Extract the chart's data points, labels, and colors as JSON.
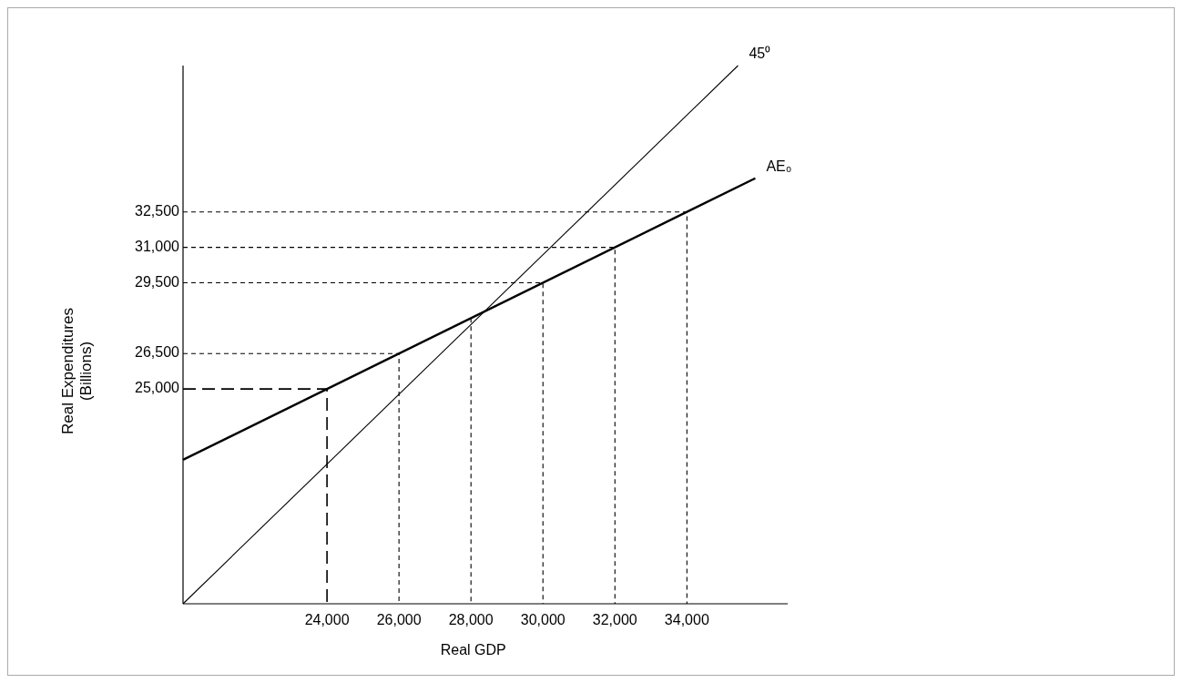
{
  "chart_data": {
    "type": "line",
    "xlabel": "Real GDP",
    "ylabel": "Real Expenditures (Billions)",
    "xlim": [
      20000,
      36800
    ],
    "ylim": [
      15900,
      38700
    ],
    "xticks": [
      {
        "value": 24000,
        "label": "24,000"
      },
      {
        "value": 26000,
        "label": "26,000"
      },
      {
        "value": 28000,
        "label": "28,000"
      },
      {
        "value": 30000,
        "label": "30,000"
      },
      {
        "value": 32000,
        "label": "32,000"
      },
      {
        "value": 34000,
        "label": "34,000"
      }
    ],
    "yticks": [
      {
        "value": 25000,
        "label": "25,000"
      },
      {
        "value": 26500,
        "label": "26,500"
      },
      {
        "value": 29500,
        "label": "29,500"
      },
      {
        "value": 31000,
        "label": "31,000"
      },
      {
        "value": 32500,
        "label": "32,500"
      }
    ],
    "series": [
      {
        "name": "45⁰",
        "color": "#000000",
        "x": [
          20000,
          35420
        ],
        "values": [
          15900,
          38700
        ]
      },
      {
        "name": "AE₀",
        "color": "#000000",
        "x": [
          20000,
          35900
        ],
        "values": [
          22000,
          33925
        ]
      },
      {
        "color": "#000000",
        "line_style": "dashed",
        "x": [
          20000,
          24000,
          24000
        ],
        "values": [
          25000,
          25000,
          15900
        ]
      },
      {
        "color": "#000000",
        "line_style": "dotted",
        "x": [
          20000,
          26000,
          26000
        ],
        "values": [
          26500,
          26500,
          15900
        ]
      },
      {
        "color": "#000000",
        "line_style": "dotted",
        "x": [
          28000,
          28000
        ],
        "values": [
          28000,
          15900
        ]
      },
      {
        "color": "#000000",
        "line_style": "dotted",
        "x": [
          20000,
          30000,
          30000
        ],
        "values": [
          29500,
          29500,
          15900
        ]
      },
      {
        "color": "#000000",
        "line_style": "dotted",
        "x": [
          20000,
          32000,
          32000
        ],
        "values": [
          31000,
          31000,
          15900
        ]
      },
      {
        "color": "#000000",
        "line_style": "dotted",
        "x": [
          20000,
          34000,
          34000
        ],
        "values": [
          32500,
          32500,
          15900
        ]
      }
    ]
  }
}
